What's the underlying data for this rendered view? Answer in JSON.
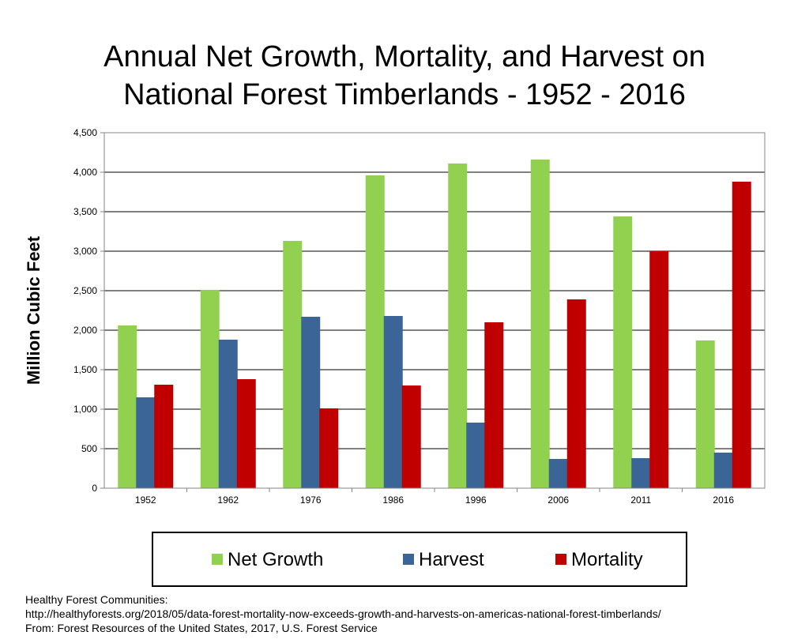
{
  "chart_data": {
    "type": "bar",
    "title_line1": "Annual Net Growth, Mortality, and Harvest on",
    "title_line2": "National Forest Timberlands - 1952 - 2016",
    "ylabel": "Million Cubic Feet",
    "xlabel": "",
    "ylim": [
      0,
      4500
    ],
    "yticks": [
      0,
      500,
      1000,
      1500,
      2000,
      2500,
      3000,
      3500,
      4000,
      4500
    ],
    "ytick_labels": [
      "0",
      "500",
      "1,000",
      "1,500",
      "2,000",
      "2,500",
      "3,000",
      "3,500",
      "4,000",
      "4,500"
    ],
    "grid": true,
    "legend_position": "bottom",
    "categories": [
      "1952",
      "1962",
      "1976",
      "1986",
      "1996",
      "2006",
      "2011",
      "2016"
    ],
    "series": [
      {
        "name": "Net Growth",
        "color": "#92d050",
        "values": [
          2060,
          2510,
          3130,
          3960,
          4110,
          4160,
          3440,
          1870
        ]
      },
      {
        "name": "Harvest",
        "color": "#3a6596",
        "values": [
          1150,
          1880,
          2170,
          2180,
          830,
          370,
          380,
          450
        ]
      },
      {
        "name": "Mortality",
        "color": "#c00000",
        "values": [
          1310,
          1380,
          1010,
          1300,
          2100,
          2390,
          3000,
          3880
        ]
      }
    ]
  },
  "source": {
    "line1": "Healthy Forest Communities:",
    "line2": "http://healthyforests.org/2018/05/data-forest-mortality-now-exceeds-growth-and-harvests-on-americas-national-forest-timberlands/",
    "line3": "From: Forest Resources of the United States, 2017, U.S. Forest Service"
  }
}
